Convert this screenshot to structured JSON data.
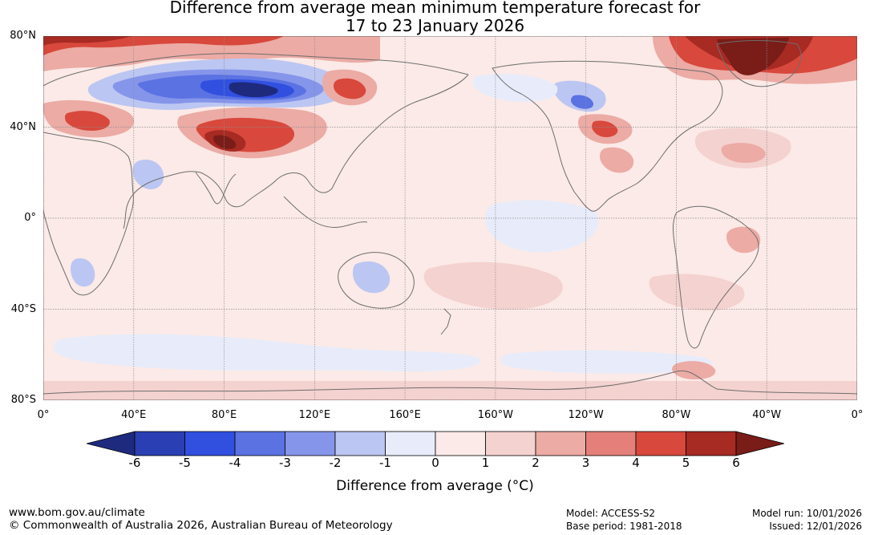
{
  "title": {
    "line1": "Difference from average mean minimum temperature forecast for",
    "line2": "17 to 23 January 2026"
  },
  "map": {
    "lat_labels": [
      "80°N",
      "40°N",
      "0°",
      "40°S",
      "80°S"
    ],
    "lat_values": [
      80,
      40,
      0,
      -40,
      -80
    ],
    "lon_labels": [
      "0°",
      "40°E",
      "80°E",
      "120°E",
      "160°E",
      "160°W",
      "120°W",
      "80°W",
      "40°W",
      "0°"
    ],
    "lon_values": [
      0,
      40,
      80,
      120,
      160,
      200,
      240,
      280,
      320,
      360
    ],
    "lat_range": [
      -80,
      80
    ],
    "lon_range": [
      0,
      360
    ],
    "colors": {
      "background_anomaly": "#fbeae7",
      "coast": "#6e6e6e",
      "grid": "#8c8c8c"
    }
  },
  "colorbar": {
    "tick_labels": [
      "-6",
      "-5",
      "-4",
      "-3",
      "-2",
      "-1",
      "0",
      "1",
      "2",
      "3",
      "4",
      "5",
      "6"
    ],
    "bin_colors": [
      "#1d2a7e",
      "#2a3fb3",
      "#3150e0",
      "#5b72e3",
      "#8595ea",
      "#bcc6f2",
      "#e8ecfa",
      "#fbeae7",
      "#f4d2cf",
      "#ecaba5",
      "#e48079",
      "#d8483c",
      "#a72a23",
      "#7a1c18"
    ],
    "label": "Difference from average (°C)"
  },
  "footer": {
    "url": "www.bom.gov.au/climate",
    "copyright": "© Commonwealth of Australia 2026, Australian Bureau of Meteorology",
    "model": "Model: ACCESS-S2",
    "base_period": "Base period: 1981-2018",
    "model_run": "Model run: 10/01/2026",
    "issued": "Issued: 12/01/2026"
  }
}
